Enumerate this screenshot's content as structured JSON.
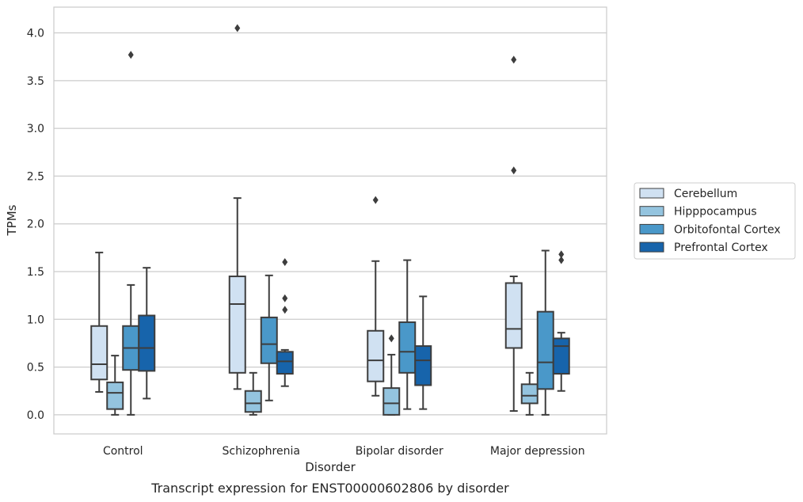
{
  "chart_data": {
    "type": "box",
    "xlabel": "Disorder",
    "ylabel": "TPMs",
    "caption": "Transcript expression for ENST00000602806 by disorder",
    "ylim": [
      -0.2,
      4.27
    ],
    "yticks": [
      0.0,
      0.5,
      1.0,
      1.5,
      2.0,
      2.5,
      3.0,
      3.5,
      4.0
    ],
    "ytick_labels": [
      "0.0",
      "0.5",
      "1.0",
      "1.5",
      "2.0",
      "2.5",
      "3.0",
      "3.5",
      "4.0"
    ],
    "grid": true,
    "legend_placement": "right",
    "categories": [
      "Control",
      "Schizophrenia",
      "Bipolar disorder",
      "Major depression"
    ],
    "series": [
      {
        "name": "Cerebellum",
        "color": "#d0e1f2",
        "boxes": [
          {
            "whislo": 0.24,
            "q1": 0.37,
            "med": 0.53,
            "q3": 0.93,
            "whishi": 1.7,
            "fliers": []
          },
          {
            "whislo": 0.27,
            "q1": 0.44,
            "med": 1.16,
            "q3": 1.45,
            "whishi": 2.27,
            "fliers": [
              4.05
            ]
          },
          {
            "whislo": 0.2,
            "q1": 0.35,
            "med": 0.57,
            "q3": 0.88,
            "whishi": 1.61,
            "fliers": [
              2.25
            ]
          },
          {
            "whislo": 0.04,
            "q1": 0.7,
            "med": 0.9,
            "q3": 1.38,
            "whishi": 1.45,
            "fliers": [
              2.56,
              3.72
            ]
          }
        ]
      },
      {
        "name": "Hipppocampus",
        "color": "#94c4df",
        "boxes": [
          {
            "whislo": 0.0,
            "q1": 0.06,
            "med": 0.23,
            "q3": 0.34,
            "whishi": 0.62,
            "fliers": []
          },
          {
            "whislo": 0.0,
            "q1": 0.03,
            "med": 0.12,
            "q3": 0.25,
            "whishi": 0.44,
            "fliers": []
          },
          {
            "whislo": 0.0,
            "q1": 0.0,
            "med": 0.12,
            "q3": 0.28,
            "whishi": 0.63,
            "fliers": [
              0.8
            ]
          },
          {
            "whislo": 0.0,
            "q1": 0.12,
            "med": 0.2,
            "q3": 0.32,
            "whishi": 0.44,
            "fliers": []
          }
        ]
      },
      {
        "name": "Orbitofontal Cortex",
        "color": "#4a98c9",
        "boxes": [
          {
            "whislo": 0.0,
            "q1": 0.47,
            "med": 0.7,
            "q3": 0.93,
            "whishi": 1.36,
            "fliers": [
              3.77
            ]
          },
          {
            "whislo": 0.15,
            "q1": 0.54,
            "med": 0.74,
            "q3": 1.02,
            "whishi": 1.46,
            "fliers": []
          },
          {
            "whislo": 0.06,
            "q1": 0.44,
            "med": 0.66,
            "q3": 0.97,
            "whishi": 1.62,
            "fliers": []
          },
          {
            "whislo": 0.0,
            "q1": 0.27,
            "med": 0.55,
            "q3": 1.08,
            "whishi": 1.72,
            "fliers": []
          }
        ]
      },
      {
        "name": "Prefrontal Cortex",
        "color": "#1764ab",
        "boxes": [
          {
            "whislo": 0.17,
            "q1": 0.46,
            "med": 0.7,
            "q3": 1.04,
            "whishi": 1.54,
            "fliers": []
          },
          {
            "whislo": 0.3,
            "q1": 0.43,
            "med": 0.56,
            "q3": 0.66,
            "whishi": 0.68,
            "fliers": [
              1.1,
              1.22,
              1.6
            ]
          },
          {
            "whislo": 0.06,
            "q1": 0.31,
            "med": 0.57,
            "q3": 0.72,
            "whishi": 1.24,
            "fliers": []
          },
          {
            "whislo": 0.25,
            "q1": 0.43,
            "med": 0.72,
            "q3": 0.8,
            "whishi": 0.86,
            "fliers": [
              1.62,
              1.68
            ]
          }
        ]
      }
    ]
  }
}
